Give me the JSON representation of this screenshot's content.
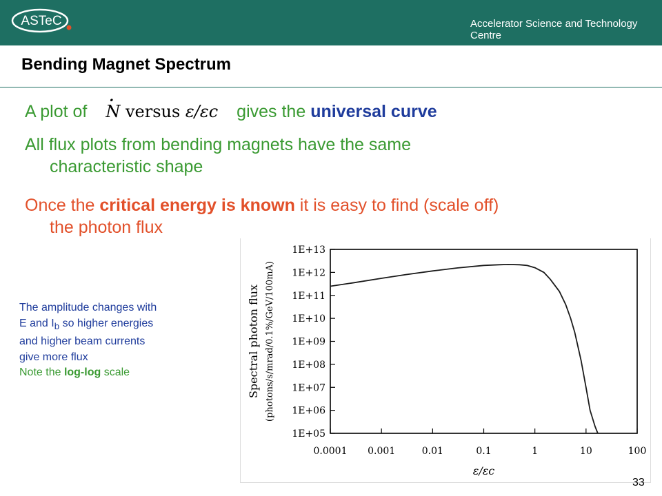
{
  "header": {
    "org_name": "Accelerator Science and Technology Centre",
    "logo_text": "ASTeC",
    "banner_color": "#1e6f62"
  },
  "slide": {
    "title": "Bending Magnet Spectrum",
    "bullet1": {
      "pre": "A plot of",
      "formula_n": "N",
      "formula_versus": "versus",
      "formula_ratio": "ε/εc",
      "post": "gives the",
      "emph": "universal curve"
    },
    "bullet2": {
      "line1": "All flux plots from bending magnets have the same",
      "line2": "characteristic shape"
    },
    "bullet3": {
      "pre": "Once the",
      "emph": "critical energy is known",
      "post": "it is easy to find (scale off)",
      "line2": "the photon flux"
    },
    "side_note": {
      "line1": "The amplitude changes with",
      "line2_pre": "E and I",
      "line2_sub": "b",
      "line2_post": "so higher energies",
      "line3": "and higher beam currents",
      "line4": "give more flux",
      "line5_pre": "Note the",
      "line5_emph": "log-log",
      "line5_post": "scale"
    },
    "page_number": "33"
  },
  "colors": {
    "green_text": "#3a9a32",
    "blue_text": "#1f3c9c",
    "orange_text": "#e2502a"
  },
  "chart_data": {
    "type": "line",
    "xscale": "log",
    "yscale": "log",
    "xlim": [
      0.0001,
      100
    ],
    "ylim": [
      100000,
      10000000000000
    ],
    "xlabel": "ε/εc",
    "ylabel": "Spectral photon flux",
    "ylabel_units": "(photons/s/mrad/0.1%/GeV/100mA)",
    "x_ticks": [
      0.0001,
      0.001,
      0.01,
      0.1,
      1,
      10,
      100
    ],
    "x_tick_labels": [
      "0.0001",
      "0.001",
      "0.01",
      "0.1",
      "1",
      "10",
      "100"
    ],
    "y_ticks": [
      100000,
      1000000,
      10000000,
      100000000,
      1000000000,
      10000000000,
      100000000000,
      1000000000000,
      10000000000000
    ],
    "y_tick_labels": [
      "1E+05",
      "1E+06",
      "1E+07",
      "1E+08",
      "1E+09",
      "1E+10",
      "1E+11",
      "1E+12",
      "1E+13"
    ],
    "grid": false,
    "series": [
      {
        "x": [
          0.0001,
          0.0003,
          0.001,
          0.003,
          0.01,
          0.03,
          0.1,
          0.2,
          0.3,
          0.5,
          0.7,
          1,
          1.5,
          2,
          3,
          4,
          5,
          6,
          8,
          10,
          12,
          15,
          17
        ],
        "y": [
          250000000000,
          360000000000,
          550000000000,
          800000000000,
          1150000000000,
          1550000000000,
          2000000000000,
          2150000000000,
          2200000000000,
          2150000000000,
          2000000000000,
          1600000000000,
          1000000000000,
          500000000000,
          150000000000,
          40000000000,
          10000000000,
          2500000000,
          150000000,
          10000000,
          1000000,
          200000,
          100000
        ]
      }
    ]
  }
}
